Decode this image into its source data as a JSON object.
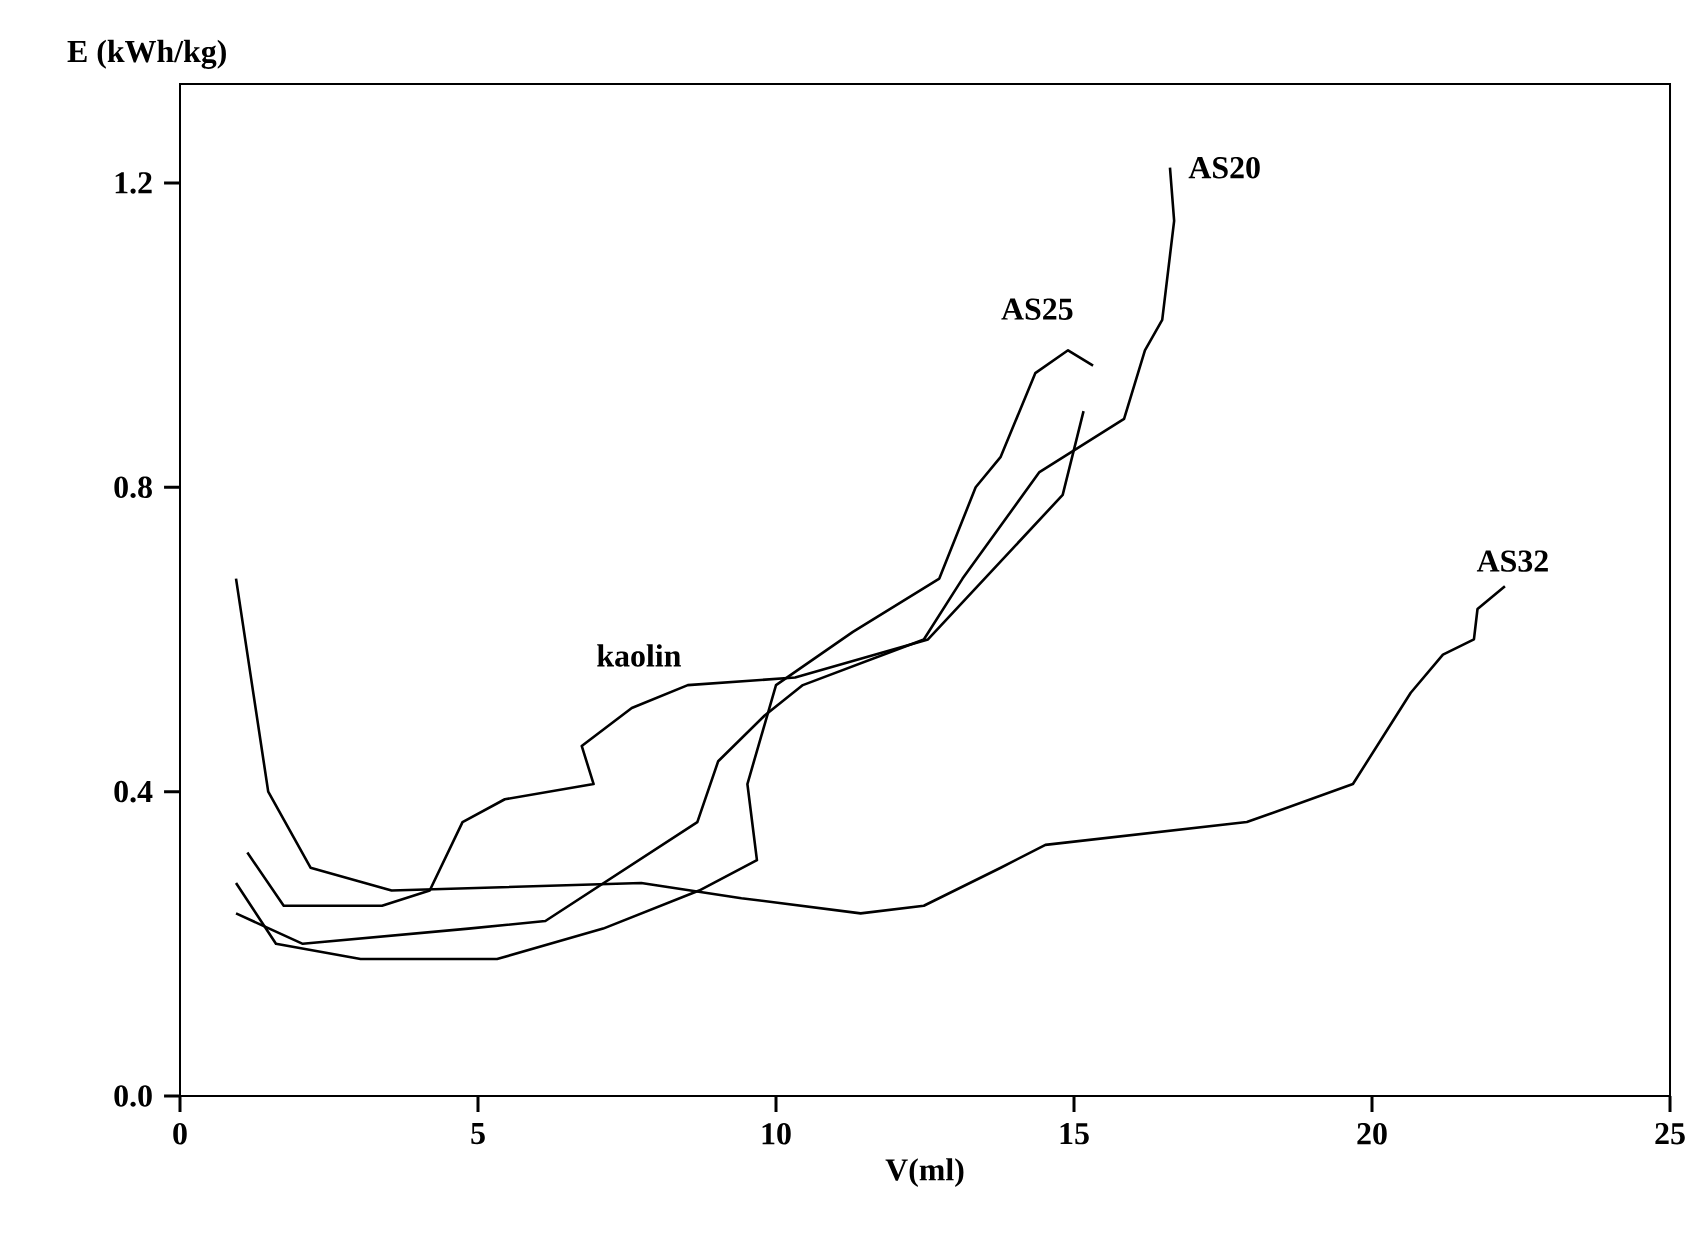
{
  "chart_data": {
    "type": "line",
    "xlabel": "V(ml)",
    "ylabel": "E (kWh/kg)",
    "xlim": [
      0,
      25
    ],
    "ylim": [
      0,
      1.33
    ],
    "xticks": [
      0,
      5,
      10,
      15,
      20,
      25
    ],
    "yticks": [
      {
        "value": 0,
        "label": "0.0"
      },
      {
        "value": 0.4,
        "label": "0.4"
      },
      {
        "value": 0.8,
        "label": "0.8"
      },
      {
        "value": 1.2,
        "label": "1.2"
      }
    ],
    "grid": false,
    "legend": false,
    "marker": "none",
    "line_style": "solid",
    "series": [
      {
        "name": "AS32",
        "color": "#000000",
        "x": [
          0.94,
          1.48,
          2.19,
          3.55,
          7.74,
          9.42,
          11.42,
          12.48,
          13.77,
          14.52,
          17.9,
          19.68,
          20.65,
          21.19,
          21.71,
          21.77,
          22.23
        ],
        "values": [
          0.68,
          0.4,
          0.3,
          0.27,
          0.28,
          0.26,
          0.24,
          0.25,
          0.3,
          0.33,
          0.36,
          0.41,
          0.53,
          0.58,
          0.6,
          0.64,
          0.67
        ]
      },
      {
        "name": "kaolin",
        "color": "#000000",
        "x": [
          1.13,
          1.74,
          3.39,
          4.19,
          4.74,
          5.45,
          6.94,
          6.74,
          7.58,
          8.52,
          10.32,
          12.55,
          14.81,
          15.16
        ],
        "values": [
          0.32,
          0.25,
          0.25,
          0.27,
          0.36,
          0.39,
          0.41,
          0.46,
          0.51,
          0.54,
          0.55,
          0.6,
          0.79,
          0.9
        ]
      },
      {
        "name": "AS25",
        "color": "#000000",
        "x": [
          0.94,
          1.61,
          3.03,
          5.32,
          7.1,
          8.71,
          9.68,
          9.52,
          10.0,
          11.29,
          12.74,
          13.35,
          13.77,
          14.35,
          14.9,
          15.32
        ],
        "values": [
          0.28,
          0.2,
          0.18,
          0.18,
          0.22,
          0.27,
          0.31,
          0.41,
          0.54,
          0.61,
          0.68,
          0.8,
          0.84,
          0.95,
          0.98,
          0.96
        ]
      },
      {
        "name": "AS20",
        "color": "#000000",
        "x": [
          0.94,
          2.06,
          4.84,
          6.13,
          8.68,
          9.03,
          9.81,
          10.45,
          12.48,
          13.13,
          14.42,
          15.84,
          16.19,
          16.48,
          16.68,
          16.61
        ],
        "values": [
          0.24,
          0.2,
          0.22,
          0.23,
          0.36,
          0.44,
          0.5,
          0.54,
          0.6,
          0.68,
          0.82,
          0.89,
          0.98,
          1.02,
          1.15,
          1.22
        ]
      }
    ]
  }
}
